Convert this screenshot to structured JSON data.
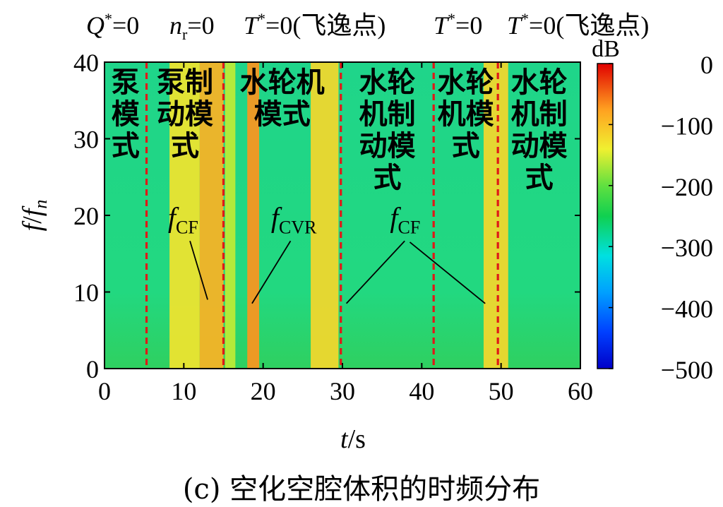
{
  "header_labels": [
    {
      "text": "Q*=0",
      "base": "Q",
      "sup": "*",
      "rest": "=0"
    },
    {
      "text": "nr=0",
      "base": "n",
      "sub": "r",
      "rest": "=0"
    },
    {
      "text": "T*=0(飞逸点)",
      "base": "T",
      "sup": "*",
      "rest": "=0(飞逸点)"
    },
    {
      "text": "T*=0",
      "base": "T",
      "sup": "*",
      "rest": "=0"
    },
    {
      "text": "T*=0(飞逸点)",
      "base": "T",
      "sup": "*",
      "rest": "=0(飞逸点)"
    }
  ],
  "caption": "(c) 空化空腔体积的时频分布",
  "chart_data": {
    "type": "heatmap",
    "title": "",
    "xlabel": "t/s",
    "ylabel": "f/fn",
    "xlim": [
      0,
      60
    ],
    "ylim": [
      0,
      40
    ],
    "xticks": [
      0,
      10,
      20,
      30,
      40,
      50,
      60
    ],
    "yticks": [
      0,
      10,
      20,
      30,
      40
    ],
    "colorbar": {
      "label": "dB",
      "range": [
        -500,
        0
      ],
      "ticks": [
        0,
        -100,
        -200,
        -300,
        -400,
        -500
      ],
      "tick_labels": [
        "0",
        "−100",
        "−200",
        "−300",
        "−400",
        "−500"
      ],
      "colormap": "jet"
    },
    "mode_boundaries_t": [
      5.3,
      15.0,
      29.8,
      41.5,
      49.6
    ],
    "modes": [
      {
        "label": [
          "泵",
          "模",
          "式"
        ],
        "t_range": [
          0,
          5.3
        ]
      },
      {
        "label": [
          "泵制",
          "动模",
          "式"
        ],
        "t_range": [
          5.3,
          15.0
        ]
      },
      {
        "label": [
          "水轮机",
          "模式"
        ],
        "t_range": [
          15.0,
          29.8
        ]
      },
      {
        "label": [
          "水轮",
          "机制",
          "动模",
          "式"
        ],
        "t_range": [
          29.8,
          41.5
        ]
      },
      {
        "label": [
          "水轮",
          "机模",
          "式"
        ],
        "t_range": [
          41.5,
          49.6
        ]
      },
      {
        "label": [
          "水轮",
          "机制",
          "动模",
          "式"
        ],
        "t_range": [
          49.6,
          60
        ]
      }
    ],
    "background_level_db": -240,
    "high_energy_bands": [
      {
        "t_range": [
          8.2,
          12.0
        ],
        "level_db": -130
      },
      {
        "t_range": [
          12.0,
          15.0
        ],
        "level_db": -90
      },
      {
        "t_range": [
          15.2,
          16.5
        ],
        "level_db": -160
      },
      {
        "t_range": [
          18.0,
          19.5
        ],
        "level_db": -70
      },
      {
        "t_range": [
          26.0,
          29.5
        ],
        "level_db": -120
      },
      {
        "t_range": [
          47.8,
          50.9
        ],
        "level_db": -120
      }
    ],
    "annotations": [
      {
        "text": "fCF",
        "base": "f",
        "sub": "CF",
        "label_at": [
          8.0,
          18.5
        ],
        "arrow_to": [
          13.0,
          9.0
        ]
      },
      {
        "text": "fCVR",
        "base": "f",
        "sub": "CVR",
        "label_at": [
          21.0,
          18.5
        ],
        "arrow_to": [
          18.6,
          8.5
        ]
      },
      {
        "text": "fCF",
        "base": "f",
        "sub": "CF",
        "label_at": [
          36.0,
          18.5
        ],
        "arrow_to": [
          30.5,
          8.5
        ]
      },
      {
        "arrow_from": [
          38.5,
          16.5
        ],
        "arrow_to": [
          48.0,
          8.5
        ]
      }
    ]
  }
}
